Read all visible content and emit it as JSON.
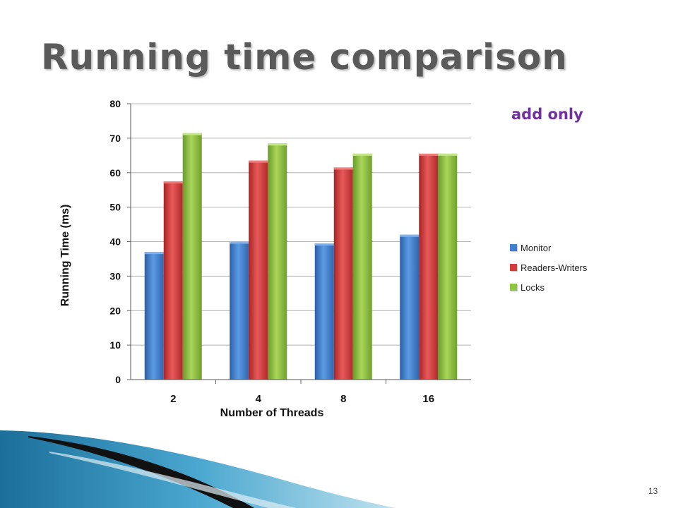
{
  "slide": {
    "title": "Running time comparison",
    "number": "13"
  },
  "annotation": "add only",
  "colors": {
    "monitor": "#3f7fcf",
    "readers_writers": "#d63a3a",
    "locks": "#8dc63f",
    "annotation": "#7030a0"
  },
  "chart_data": {
    "type": "bar",
    "categories": [
      "2",
      "4",
      "8",
      "16"
    ],
    "series": [
      {
        "name": "Monitor",
        "values": [
          37,
          40,
          39.5,
          42
        ]
      },
      {
        "name": "Readers-Writers",
        "values": [
          57.5,
          63.5,
          61.5,
          65.5
        ]
      },
      {
        "name": "Locks",
        "values": [
          71.5,
          68.5,
          65.5,
          65.5
        ]
      }
    ],
    "xlabel": "Number of Threads",
    "ylabel": "Running Time (ms)",
    "ylim": [
      0,
      80
    ],
    "yticks": [
      0,
      10,
      20,
      30,
      40,
      50,
      60,
      70,
      80
    ],
    "grid": true,
    "legend_position": "right"
  }
}
